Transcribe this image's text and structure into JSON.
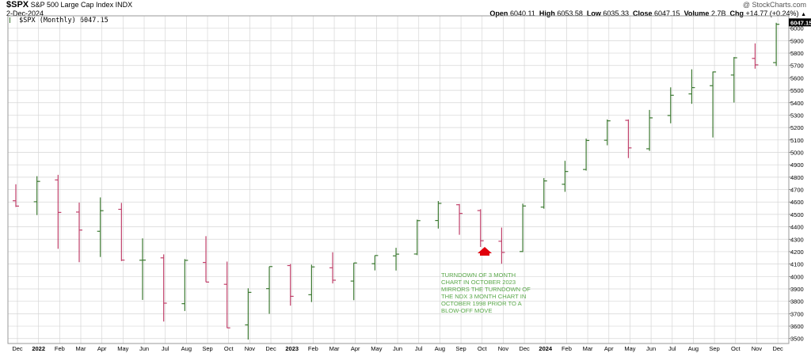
{
  "header": {
    "symbol": "$SPX",
    "name": "S&P 500 Large Cap Index",
    "exchange": "INDX",
    "date": "2-Dec-2024",
    "watermark": "@ StockCharts.com",
    "open_label": "Open",
    "open": "6040.11",
    "high_label": "High",
    "high": "6053.58",
    "low_label": "Low",
    "low": "6035.33",
    "close_label": "Close",
    "close": "6047.15",
    "volume_label": "Volume",
    "volume": "2.7B",
    "chg_label": "Chg",
    "chg": "+14.77 (+0.24%)",
    "chg_arrow": "▲",
    "legend": "$SPX (Monthly) 6047.15",
    "last_price_tag": "6047.15"
  },
  "colors": {
    "up": "#3d7a32",
    "down": "#c0406a",
    "grid": "#d6d6d6",
    "annotation": "#5aa84a",
    "arrow": "#e0000c",
    "tag_bg": "#000000",
    "tag_text": "#ffffff"
  },
  "annotation": {
    "lines": [
      "TURNDOWN OF 3 MONTH",
      "CHART IN OCTOBER 2023",
      "MIRRORS THE TURNDOWN OF",
      "THE NDX 3 MONTH CHART IN",
      "OCTOBER 1998 PRIOR TO A",
      "BLOW-OFF MOVE"
    ],
    "arrow_icon": "up-arrow-icon"
  },
  "chart_data": {
    "type": "ohlc",
    "title": "$SPX S&P 500 Large Cap Index",
    "xlabel": "",
    "ylabel": "",
    "ylim": [
      3460,
      6100
    ],
    "yticks": [
      3500,
      3600,
      3700,
      3800,
      3900,
      4000,
      4100,
      4200,
      4300,
      4400,
      4500,
      4600,
      4700,
      4800,
      4900,
      5000,
      5100,
      5200,
      5300,
      5400,
      5500,
      5600,
      5700,
      5800,
      5900,
      6000
    ],
    "x_labels": [
      "Dec",
      "2022",
      "Feb",
      "Mar",
      "Apr",
      "May",
      "Jun",
      "Jul",
      "Aug",
      "Sep",
      "Oct",
      "Nov",
      "Dec",
      "2023",
      "Feb",
      "Mar",
      "Apr",
      "May",
      "Jun",
      "Jul",
      "Aug",
      "Sep",
      "Oct",
      "Nov",
      "Dec",
      "2024",
      "Feb",
      "Mar",
      "Apr",
      "May",
      "Jun",
      "Jul",
      "Aug",
      "Sep",
      "Oct",
      "Nov",
      "Dec"
    ],
    "year_labels": [
      "2022",
      "2023",
      "2024"
    ],
    "grid": true,
    "bars": [
      {
        "x": "Nov 2021",
        "o": 4610,
        "h": 4743,
        "l": 4560,
        "c": 4567
      },
      {
        "x": "Dec 2021",
        "o": 4602,
        "h": 4808,
        "l": 4495,
        "c": 4766
      },
      {
        "x": "Jan 2022",
        "o": 4778,
        "h": 4819,
        "l": 4223,
        "c": 4516
      },
      {
        "x": "Feb 2022",
        "o": 4519,
        "h": 4595,
        "l": 4115,
        "c": 4374
      },
      {
        "x": "Mar 2022",
        "o": 4364,
        "h": 4637,
        "l": 4157,
        "c": 4530
      },
      {
        "x": "Apr 2022",
        "o": 4541,
        "h": 4593,
        "l": 4124,
        "c": 4132
      },
      {
        "x": "May 2022",
        "o": 4131,
        "h": 4307,
        "l": 3811,
        "c": 4132
      },
      {
        "x": "Jun 2022",
        "o": 4150,
        "h": 4178,
        "l": 3637,
        "c": 3785
      },
      {
        "x": "Jul 2022",
        "o": 3781,
        "h": 4140,
        "l": 3722,
        "c": 4130
      },
      {
        "x": "Aug 2022",
        "o": 4113,
        "h": 4325,
        "l": 3955,
        "c": 3955
      },
      {
        "x": "Sep 2022",
        "o": 3937,
        "h": 4120,
        "l": 3585,
        "c": 3586
      },
      {
        "x": "Oct 2022",
        "o": 3610,
        "h": 3905,
        "l": 3492,
        "c": 3872
      },
      {
        "x": "Nov 2022",
        "o": 3902,
        "h": 4080,
        "l": 3699,
        "c": 4080
      },
      {
        "x": "Dec 2022",
        "o": 4088,
        "h": 4101,
        "l": 3765,
        "c": 3840
      },
      {
        "x": "Jan 2023",
        "o": 3853,
        "h": 4095,
        "l": 3794,
        "c": 4077
      },
      {
        "x": "Feb 2023",
        "o": 4070,
        "h": 4195,
        "l": 3944,
        "c": 3970
      },
      {
        "x": "Mar 2023",
        "o": 3963,
        "h": 4110,
        "l": 3809,
        "c": 4109
      },
      {
        "x": "Apr 2023",
        "o": 4103,
        "h": 4170,
        "l": 4049,
        "c": 4169
      },
      {
        "x": "May 2023",
        "o": 4166,
        "h": 4231,
        "l": 4048,
        "c": 4180
      },
      {
        "x": "Jun 2023",
        "o": 4181,
        "h": 4458,
        "l": 4172,
        "c": 4450
      },
      {
        "x": "Jul 2023",
        "o": 4451,
        "h": 4608,
        "l": 4386,
        "c": 4589
      },
      {
        "x": "Aug 2023",
        "o": 4578,
        "h": 4584,
        "l": 4336,
        "c": 4508
      },
      {
        "x": "Sep 2023",
        "o": 4531,
        "h": 4542,
        "l": 4238,
        "c": 4288
      },
      {
        "x": "Oct 2023",
        "o": 4284,
        "h": 4394,
        "l": 4103,
        "c": 4194
      },
      {
        "x": "Nov 2023",
        "o": 4201,
        "h": 4587,
        "l": 4197,
        "c": 4568
      },
      {
        "x": "Dec 2023",
        "o": 4559,
        "h": 4793,
        "l": 4546,
        "c": 4770
      },
      {
        "x": "Jan 2024",
        "o": 4743,
        "h": 4932,
        "l": 4682,
        "c": 4846
      },
      {
        "x": "Feb 2024",
        "o": 4862,
        "h": 5111,
        "l": 4853,
        "c": 5096
      },
      {
        "x": "Mar 2024",
        "o": 5098,
        "h": 5265,
        "l": 5057,
        "c": 5254
      },
      {
        "x": "Apr 2024",
        "o": 5258,
        "h": 5265,
        "l": 4954,
        "c": 5036
      },
      {
        "x": "May 2024",
        "o": 5029,
        "h": 5342,
        "l": 5012,
        "c": 5278
      },
      {
        "x": "Jun 2024",
        "o": 5297,
        "h": 5524,
        "l": 5234,
        "c": 5460
      },
      {
        "x": "Jul 2024",
        "o": 5471,
        "h": 5669,
        "l": 5391,
        "c": 5522
      },
      {
        "x": "Aug 2024",
        "o": 5537,
        "h": 5651,
        "l": 5120,
        "c": 5648
      },
      {
        "x": "Sep 2024",
        "o": 5623,
        "h": 5768,
        "l": 5402,
        "c": 5762
      },
      {
        "x": "Oct 2024",
        "o": 5757,
        "h": 5878,
        "l": 5674,
        "c": 5705
      },
      {
        "x": "Nov 2024",
        "o": 5723,
        "h": 6044,
        "l": 5696,
        "c": 6032
      },
      {
        "x": "Dec 2024",
        "o": 6040,
        "h": 6054,
        "l": 6035,
        "c": 6047
      }
    ]
  }
}
